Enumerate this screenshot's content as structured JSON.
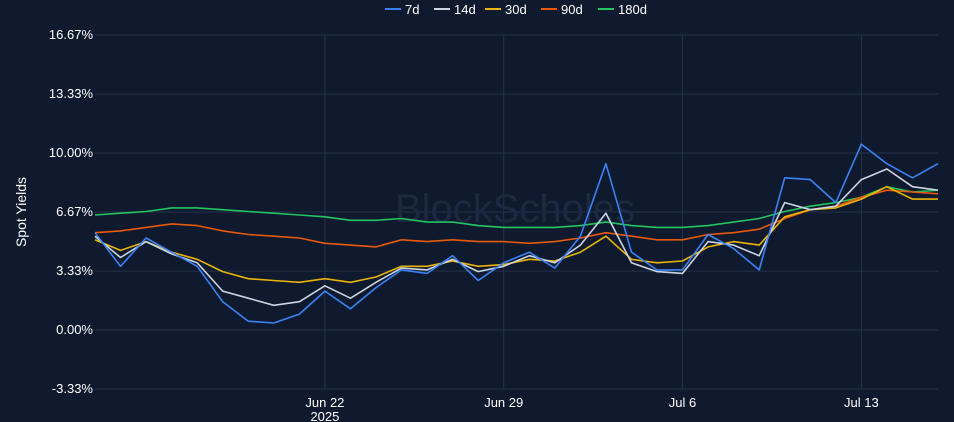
{
  "watermark": "BlockScholes",
  "colors": {
    "background": "#0f1a2e",
    "grid": "#25324a",
    "text": "#ffffff"
  },
  "chart_data": {
    "type": "line",
    "title": "",
    "xlabel": "",
    "ylabel": "Spot Yields",
    "y_unit": "%",
    "ylim": [
      -3.33,
      16.67
    ],
    "xlim": [
      "2025-06-13",
      "2025-07-16"
    ],
    "y_ticks": [
      -3.33,
      0.0,
      3.33,
      6.67,
      10.0,
      13.33,
      16.67
    ],
    "y_tick_labels": [
      "-3.33%",
      "0.00%",
      "3.33%",
      "6.67%",
      "10.00%",
      "13.33%",
      "16.67%"
    ],
    "x_ticks": [
      "2025-06-22",
      "2025-06-29",
      "2025-07-06",
      "2025-07-13"
    ],
    "x_tick_labels": [
      "Jun 22",
      "Jun 29",
      "Jul 6",
      "Jul 13"
    ],
    "x_year_label": "2025",
    "grid": true,
    "legend_position": "top-center",
    "x": [
      "2025-06-13",
      "2025-06-14",
      "2025-06-15",
      "2025-06-16",
      "2025-06-17",
      "2025-06-18",
      "2025-06-19",
      "2025-06-20",
      "2025-06-21",
      "2025-06-22",
      "2025-06-23",
      "2025-06-24",
      "2025-06-25",
      "2025-06-26",
      "2025-06-27",
      "2025-06-28",
      "2025-06-29",
      "2025-06-30",
      "2025-07-01",
      "2025-07-02",
      "2025-07-03",
      "2025-07-04",
      "2025-07-05",
      "2025-07-06",
      "2025-07-07",
      "2025-07-08",
      "2025-07-09",
      "2025-07-10",
      "2025-07-11",
      "2025-07-12",
      "2025-07-13",
      "2025-07-14",
      "2025-07-15",
      "2025-07-16"
    ],
    "series": [
      {
        "name": "7d",
        "color": "#3b82f6",
        "values": [
          5.5,
          3.6,
          5.2,
          4.4,
          3.6,
          1.6,
          0.5,
          0.4,
          0.9,
          2.2,
          1.2,
          2.4,
          3.4,
          3.2,
          4.2,
          2.8,
          3.8,
          4.4,
          3.5,
          5.3,
          9.4,
          4.4,
          3.4,
          3.4,
          5.4,
          4.6,
          3.4,
          8.6,
          8.5,
          7.2,
          10.5,
          9.4,
          8.6,
          9.4
        ]
      },
      {
        "name": "14d",
        "color": "#cbd5e1",
        "values": [
          5.3,
          4.1,
          5.0,
          4.3,
          3.8,
          2.2,
          1.8,
          1.4,
          1.6,
          2.5,
          1.8,
          2.7,
          3.5,
          3.4,
          4.0,
          3.3,
          3.6,
          4.2,
          3.8,
          4.8,
          6.6,
          3.8,
          3.3,
          3.2,
          5.0,
          4.8,
          4.2,
          7.2,
          6.8,
          7.0,
          8.5,
          9.1,
          8.1,
          7.9
        ]
      },
      {
        "name": "30d",
        "color": "#eab308",
        "values": [
          5.1,
          4.5,
          5.0,
          4.4,
          4.0,
          3.3,
          2.9,
          2.8,
          2.7,
          2.9,
          2.7,
          3.0,
          3.6,
          3.6,
          3.9,
          3.6,
          3.7,
          4.0,
          3.9,
          4.4,
          5.3,
          4.0,
          3.8,
          3.9,
          4.7,
          5.0,
          4.8,
          6.4,
          6.8,
          6.9,
          7.4,
          8.1,
          7.4,
          7.4
        ]
      },
      {
        "name": "90d",
        "color": "#ea580c",
        "values": [
          5.5,
          5.6,
          5.8,
          6.0,
          5.9,
          5.6,
          5.4,
          5.3,
          5.2,
          4.9,
          4.8,
          4.7,
          5.1,
          5.0,
          5.1,
          5.0,
          5.0,
          4.9,
          5.0,
          5.2,
          5.5,
          5.3,
          5.1,
          5.1,
          5.4,
          5.5,
          5.7,
          6.3,
          6.8,
          7.0,
          7.5,
          7.9,
          7.8,
          7.7
        ]
      },
      {
        "name": "180d",
        "color": "#22c55e",
        "values": [
          6.5,
          6.6,
          6.7,
          6.9,
          6.9,
          6.8,
          6.7,
          6.6,
          6.5,
          6.4,
          6.2,
          6.2,
          6.3,
          6.1,
          6.1,
          5.9,
          5.8,
          5.8,
          5.8,
          5.9,
          6.1,
          5.9,
          5.8,
          5.8,
          5.9,
          6.1,
          6.3,
          6.7,
          7.0,
          7.2,
          7.5,
          8.1,
          7.8,
          7.9
        ]
      }
    ]
  }
}
